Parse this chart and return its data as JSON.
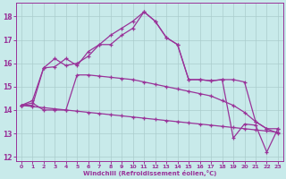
{
  "xlabel": "Windchill (Refroidissement éolien,°C)",
  "xlim": [
    -0.5,
    23.5
  ],
  "ylim": [
    11.8,
    18.6
  ],
  "yticks": [
    12,
    13,
    14,
    15,
    16,
    17,
    18
  ],
  "xticks": [
    0,
    1,
    2,
    3,
    4,
    5,
    6,
    7,
    8,
    9,
    10,
    11,
    12,
    13,
    14,
    15,
    16,
    17,
    18,
    19,
    20,
    21,
    22,
    23
  ],
  "background_color": "#c8eaea",
  "grid_color": "#aacccc",
  "line_color": "#993399",
  "line1_x": [
    0,
    1,
    2,
    3,
    4,
    5,
    6,
    7,
    8,
    9,
    10,
    11,
    12,
    13,
    14,
    15,
    16,
    17,
    18,
    19,
    20,
    21,
    22,
    23
  ],
  "line1_y": [
    14.2,
    14.4,
    15.8,
    15.85,
    16.2,
    15.9,
    16.5,
    16.8,
    16.8,
    17.2,
    17.5,
    18.2,
    17.8,
    17.1,
    16.8,
    15.3,
    15.3,
    15.25,
    15.3,
    15.3,
    15.2,
    13.5,
    13.2,
    13.2
  ],
  "line2_x": [
    0,
    1,
    2,
    3,
    4,
    5,
    6,
    7,
    8,
    9,
    10,
    11,
    12,
    13,
    14,
    15,
    16,
    17,
    18,
    19,
    20,
    21,
    22,
    23
  ],
  "line2_y": [
    14.2,
    14.15,
    14.1,
    14.05,
    14.0,
    13.95,
    13.9,
    13.85,
    13.8,
    13.75,
    13.7,
    13.65,
    13.6,
    13.55,
    13.5,
    13.45,
    13.4,
    13.35,
    13.3,
    13.25,
    13.2,
    13.15,
    13.1,
    13.05
  ],
  "line3_x": [
    0,
    1,
    2,
    3,
    4,
    5,
    6,
    7,
    8,
    9,
    10,
    11,
    12,
    13,
    14,
    15,
    16,
    17,
    18,
    19,
    20,
    21,
    22,
    23
  ],
  "line3_y": [
    14.2,
    14.3,
    14.0,
    14.0,
    14.0,
    15.5,
    15.5,
    15.45,
    15.4,
    15.35,
    15.3,
    15.2,
    15.1,
    15.0,
    14.9,
    14.8,
    14.7,
    14.6,
    14.4,
    14.2,
    13.9,
    13.5,
    13.2,
    13.0
  ],
  "line4_x": [
    0,
    1,
    2,
    3,
    4,
    5,
    6,
    7,
    8,
    9,
    10,
    11,
    12,
    13,
    14,
    15,
    16,
    17,
    18,
    19,
    20,
    21,
    22,
    23
  ],
  "line4_y": [
    14.2,
    14.2,
    15.8,
    16.2,
    15.9,
    16.0,
    16.3,
    16.8,
    17.2,
    17.5,
    17.8,
    18.2,
    17.8,
    17.1,
    16.8,
    15.3,
    15.3,
    15.25,
    15.3,
    12.8,
    13.4,
    13.35,
    12.2,
    13.2
  ]
}
